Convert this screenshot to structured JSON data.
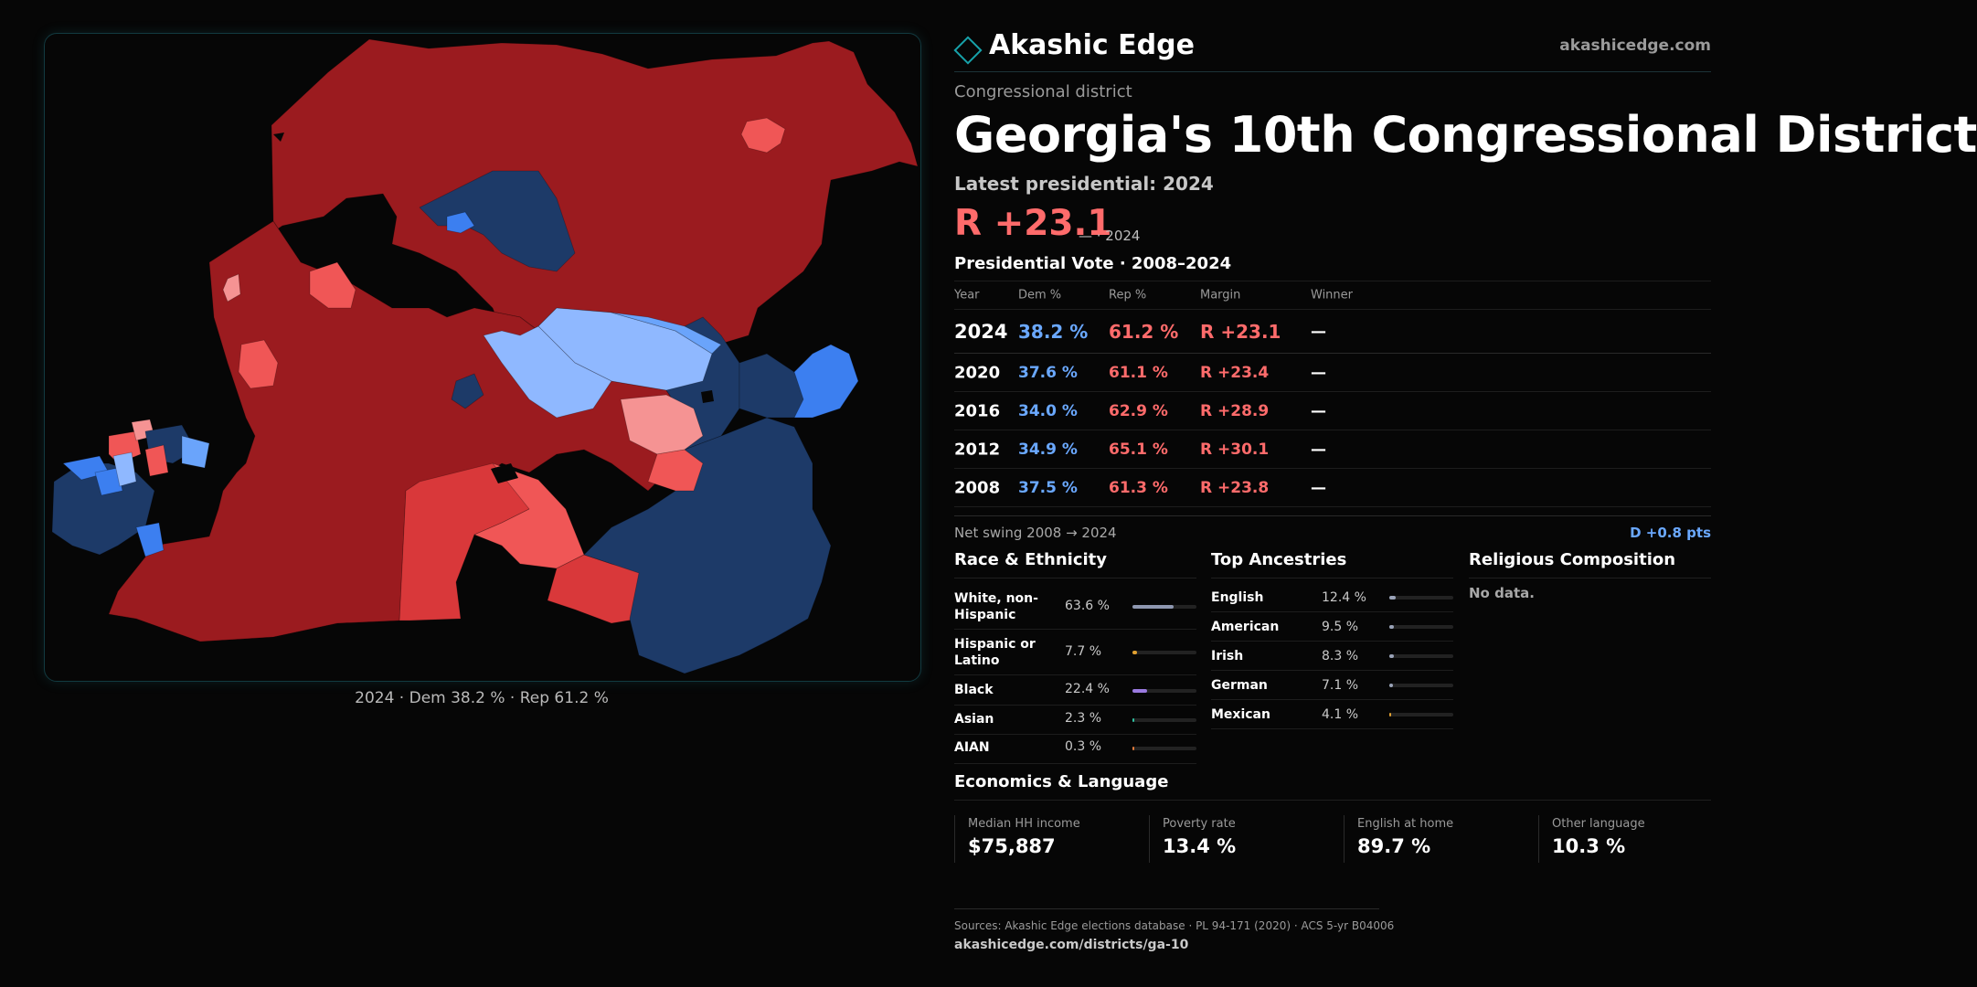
{
  "brand": {
    "name": "Akashic Edge",
    "url": "akashicedge.com"
  },
  "district": {
    "kicker": "Congressional district",
    "title": "Georgia's 10th Congressional District",
    "latest_label": "Latest presidential: 2024",
    "margin": "R +23.1",
    "margin_sub": "— · 2024"
  },
  "map": {
    "caption": "2024 · Dem 38.2 % · Rep 61.2 %",
    "colors": {
      "safe_rep": "#9b1b1f",
      "likely_rep": "#d9383a",
      "lean_rep": "#f05656",
      "tilt_rep": "#f59393",
      "tilt_dem": "#8fb8ff",
      "lean_dem": "#6aa4fb",
      "likely_dem": "#3c7ff0",
      "safe_dem": "#1d3a68"
    }
  },
  "presidential": {
    "title": "Presidential Vote · 2008–2024",
    "headers": {
      "year": "Year",
      "dem": "Dem %",
      "rep": "Rep %",
      "margin": "Margin",
      "winner": "Winner"
    },
    "rows": [
      {
        "year": "2024",
        "dem": "38.2 %",
        "rep": "61.2 %",
        "margin": "R +23.1",
        "winner": "—"
      },
      {
        "year": "2020",
        "dem": "37.6 %",
        "rep": "61.1 %",
        "margin": "R +23.4",
        "winner": "—"
      },
      {
        "year": "2016",
        "dem": "34.0 %",
        "rep": "62.9 %",
        "margin": "R +28.9",
        "winner": "—"
      },
      {
        "year": "2012",
        "dem": "34.9 %",
        "rep": "65.1 %",
        "margin": "R +30.1",
        "winner": "—"
      },
      {
        "year": "2008",
        "dem": "37.5 %",
        "rep": "61.3 %",
        "margin": "R +23.8",
        "winner": "—"
      }
    ],
    "swing_label": "Net swing 2008 → 2024",
    "swing_value": "D +0.8 pts"
  },
  "race": {
    "title": "Race & Ethnicity",
    "items": [
      {
        "label": "White, non-Hispanic",
        "value": "63.6 %",
        "pct": 63.6,
        "color": "#8e97b0"
      },
      {
        "label": "Hispanic or Latino",
        "value": "7.7 %",
        "pct": 7.7,
        "color": "#e0a030"
      },
      {
        "label": "Black",
        "value": "22.4 %",
        "pct": 22.4,
        "color": "#9a7ae0"
      },
      {
        "label": "Asian",
        "value": "2.3 %",
        "pct": 2.3,
        "color": "#2fc0a0"
      },
      {
        "label": "AIAN",
        "value": "0.3 %",
        "pct": 0.3,
        "color": "#e07a3a"
      }
    ]
  },
  "ancestry": {
    "title": "Top Ancestries",
    "items": [
      {
        "label": "English",
        "value": "12.4 %",
        "pct": 12.4,
        "color": "#9aa3b8"
      },
      {
        "label": "American",
        "value": "9.5 %",
        "pct": 9.5,
        "color": "#9aa3b8"
      },
      {
        "label": "Irish",
        "value": "8.3 %",
        "pct": 8.3,
        "color": "#9aa3b8"
      },
      {
        "label": "German",
        "value": "7.1 %",
        "pct": 7.1,
        "color": "#9aa3b8"
      },
      {
        "label": "Mexican",
        "value": "4.1 %",
        "pct": 4.1,
        "color": "#e0a030"
      }
    ]
  },
  "religion": {
    "title": "Religious Composition",
    "no_data": "No data."
  },
  "economics": {
    "title": "Economics & Language",
    "items": [
      {
        "label": "Median HH income",
        "value": "$75,887"
      },
      {
        "label": "Poverty rate",
        "value": "13.4 %"
      },
      {
        "label": "English at home",
        "value": "89.7 %"
      },
      {
        "label": "Other language",
        "value": "10.3 %"
      }
    ]
  },
  "footer": {
    "sources": "Sources: Akashic Edge elections database · PL 94-171 (2020) · ACS 5-yr B04006",
    "url": "akashicedge.com/districts/ga-10"
  }
}
